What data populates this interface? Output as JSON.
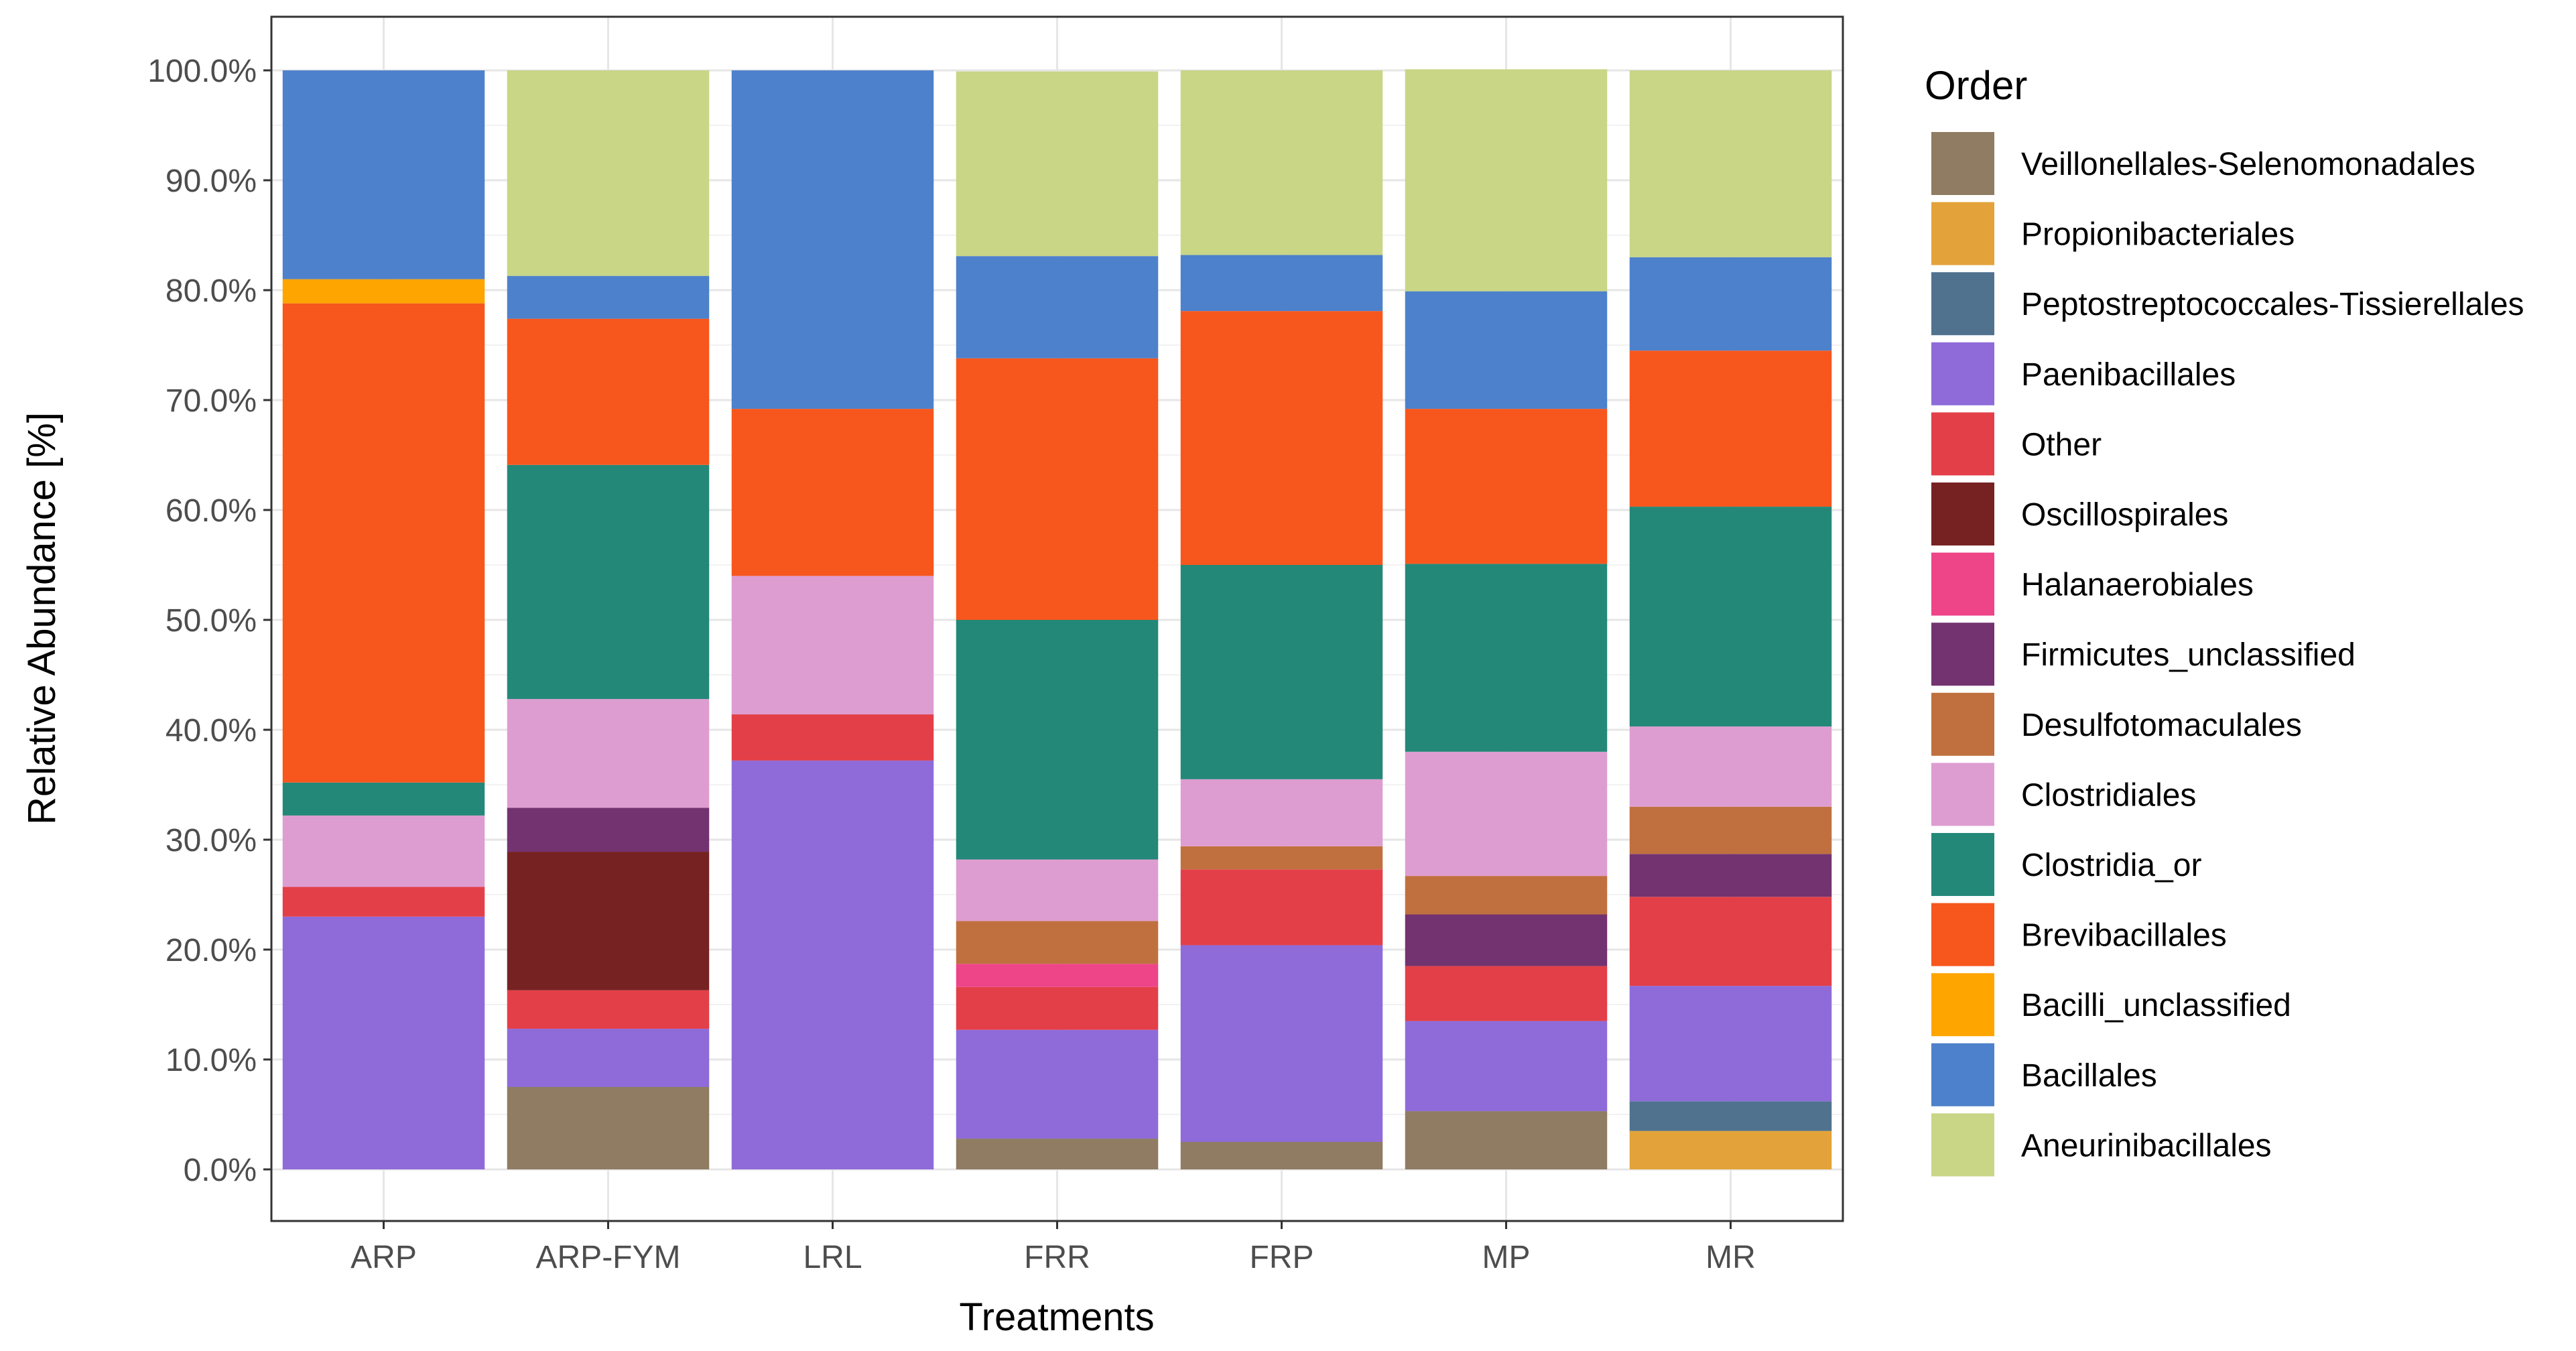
{
  "chart_data": {
    "type": "bar",
    "stacked": true,
    "title": "",
    "xlabel": "Treatments",
    "ylabel": "Relative Abundance [%]",
    "ylim": [
      0,
      100
    ],
    "yticks": [
      "0.0%",
      "10.0%",
      "20.0%",
      "30.0%",
      "40.0%",
      "50.0%",
      "60.0%",
      "70.0%",
      "80.0%",
      "90.0%",
      "100.0%"
    ],
    "grid": true,
    "legend_title": "Order",
    "legend_position": "right",
    "categories": [
      "ARP",
      "ARP-FYM",
      "LRL",
      "FRR",
      "FRP",
      "MP",
      "MR"
    ],
    "series": [
      {
        "name": "Veillonellales-Selenomonadales",
        "color": "#8F7C62",
        "values": [
          0,
          7.5,
          0,
          2.8,
          2.5,
          5.3,
          0
        ]
      },
      {
        "name": "Propionibacteriales",
        "color": "#E3A33A",
        "values": [
          0,
          0,
          0,
          0,
          0,
          0,
          3.5
        ]
      },
      {
        "name": "Peptostreptococcales-Tissierellales",
        "color": "#50728F",
        "values": [
          0,
          0,
          0,
          0,
          0,
          0,
          2.7
        ]
      },
      {
        "name": "Paenibacillales",
        "color": "#8E6BD9",
        "values": [
          23.0,
          5.3,
          37.2,
          9.9,
          17.9,
          8.2,
          10.5
        ]
      },
      {
        "name": "Other",
        "color": "#E33F48",
        "values": [
          2.7,
          3.5,
          4.2,
          3.9,
          6.9,
          5.0,
          8.1
        ]
      },
      {
        "name": "Oscillospirales",
        "color": "#772222",
        "values": [
          0,
          12.6,
          0,
          0,
          0,
          0,
          0
        ]
      },
      {
        "name": "Halanaerobiales",
        "color": "#EE4488",
        "values": [
          0,
          0,
          0,
          2.1,
          0,
          0,
          0
        ]
      },
      {
        "name": "Firmicutes_unclassified",
        "color": "#733370",
        "values": [
          0,
          4.0,
          0,
          0,
          0,
          4.7,
          3.9
        ]
      },
      {
        "name": "Desulfotomaculales",
        "color": "#C0703E",
        "values": [
          0,
          0,
          0,
          3.9,
          2.1,
          3.5,
          4.3
        ]
      },
      {
        "name": "Clostridiales",
        "color": "#DE9DD1",
        "values": [
          6.5,
          9.9,
          12.6,
          5.6,
          6.1,
          11.3,
          7.3
        ]
      },
      {
        "name": "Clostridia_or",
        "color": "#248878",
        "values": [
          3.0,
          21.3,
          0,
          21.8,
          19.5,
          17.1,
          20.0
        ]
      },
      {
        "name": "Brevibacillales",
        "color": "#F7561C",
        "values": [
          43.6,
          13.3,
          15.2,
          23.8,
          23.1,
          14.1,
          14.2
        ]
      },
      {
        "name": "Bacilli_unclassified",
        "color": "#FFA500",
        "values": [
          2.2,
          0,
          0,
          0,
          0,
          0,
          0
        ]
      },
      {
        "name": "Bacillales",
        "color": "#4E81CB",
        "values": [
          19.0,
          3.9,
          30.8,
          9.3,
          5.1,
          10.7,
          8.5
        ]
      },
      {
        "name": "Aneurinibacillales",
        "color": "#C8D686",
        "values": [
          0,
          18.7,
          0,
          16.8,
          16.8,
          20.2,
          17.0
        ]
      }
    ]
  }
}
